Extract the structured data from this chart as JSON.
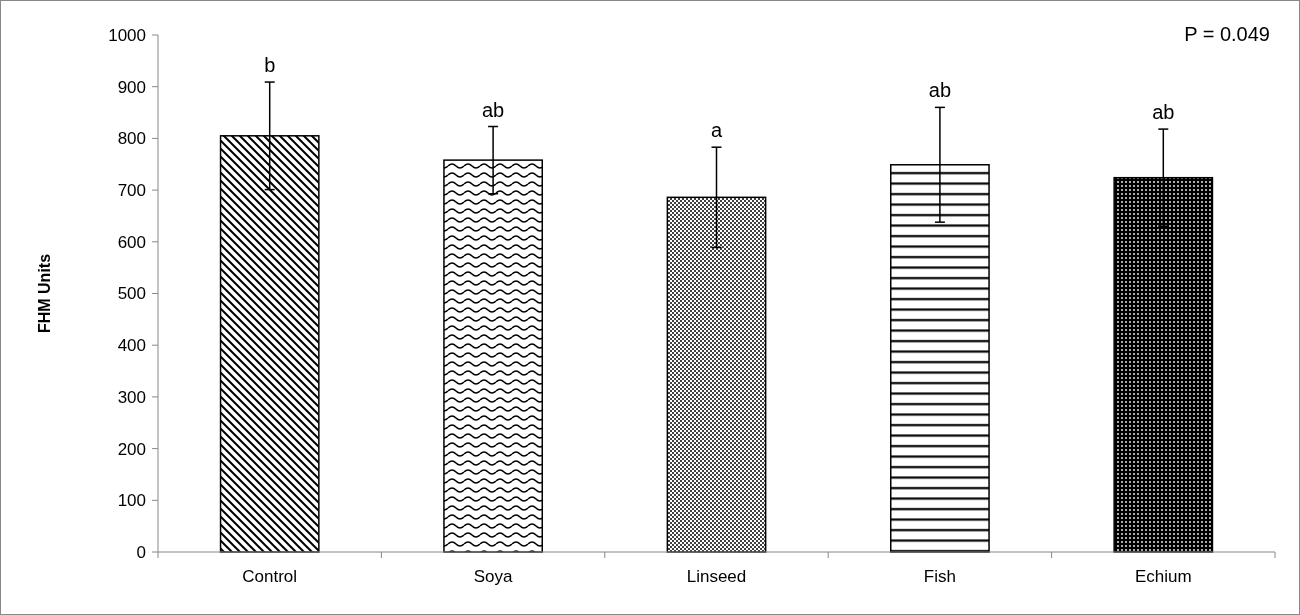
{
  "chart_data": {
    "type": "bar",
    "categories": [
      "Control",
      "Soya",
      "Linseed",
      "Fish",
      "Echium"
    ],
    "values": [
      805,
      758,
      686,
      749,
      724
    ],
    "errors": [
      104,
      65,
      97,
      111,
      94
    ],
    "color": "#000000",
    "ylabel": "FHM Units",
    "ylim": [
      0,
      1000
    ],
    "yticks": [
      0,
      100,
      200,
      300,
      400,
      500,
      600,
      700,
      800,
      900,
      1000
    ],
    "annotations": [
      "P = 0.049",
      {
        "text": "b",
        "x": "Control",
        "y": 909
      },
      {
        "text": "ab",
        "x": "Soya",
        "y": 823
      },
      {
        "text": "a",
        "x": "Linseed",
        "y": 783
      },
      {
        "text": "ab",
        "x": "Fish",
        "y": 860
      },
      {
        "text": "ab",
        "x": "Echium",
        "y": 818
      }
    ]
  }
}
